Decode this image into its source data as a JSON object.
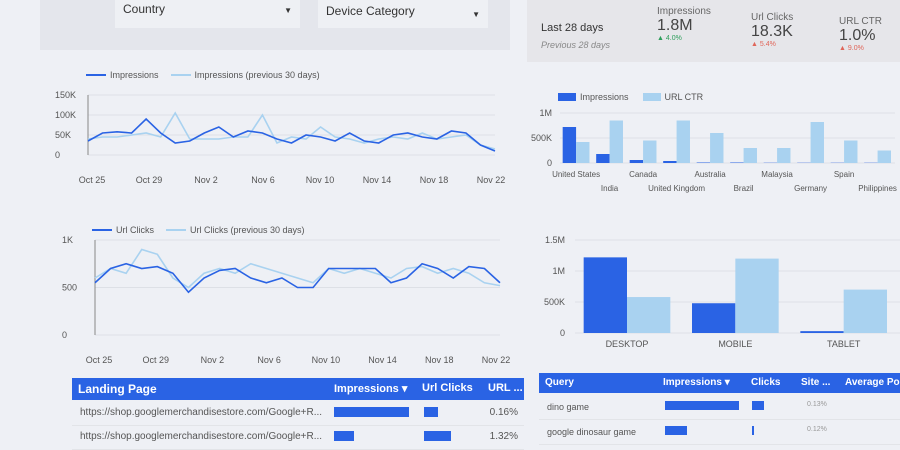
{
  "filters": {
    "country": "Country",
    "device": "Device Category"
  },
  "scorecard": {
    "period": "Last 28 days",
    "previous": "Previous 28 days",
    "metrics": [
      {
        "label": "Impressions",
        "value": "1.8M",
        "delta": "▲ 4.0%",
        "color": "#2e9e5b"
      },
      {
        "label": "Url Clicks",
        "value": "18.3K",
        "delta": "▲ 5.4%",
        "color": "#e0665a"
      },
      {
        "label": "URL CTR",
        "value": "1.0%",
        "delta": "▲ 9.0%",
        "color": "#e0665a"
      }
    ]
  },
  "colors": {
    "primary": "#2a63e4",
    "secondary": "#a9d2f0"
  },
  "chart_data": [
    {
      "type": "line",
      "legend": [
        "Impressions",
        "Impressions (previous 30 days)"
      ],
      "yticks": [
        "150K",
        "100K",
        "50K",
        "0"
      ],
      "ylim": [
        0,
        150000
      ],
      "xticks": [
        "Oct 25",
        "Oct 29",
        "Nov 2",
        "Nov 6",
        "Nov 10",
        "Nov 14",
        "Nov 18",
        "Nov 22"
      ],
      "series": [
        {
          "name": "Impressions",
          "values": [
            35000,
            55000,
            58000,
            55000,
            90000,
            55000,
            30000,
            35000,
            55000,
            70000,
            45000,
            60000,
            55000,
            40000,
            30000,
            50000,
            45000,
            35000,
            55000,
            35000,
            30000,
            50000,
            55000,
            45000,
            40000,
            60000,
            55000,
            25000,
            10000
          ]
        },
        {
          "name": "Impressions (previous 30 days)",
          "values": [
            40000,
            45000,
            45000,
            50000,
            55000,
            45000,
            105000,
            40000,
            40000,
            40000,
            45000,
            45000,
            100000,
            30000,
            45000,
            40000,
            70000,
            45000,
            40000,
            30000,
            40000,
            45000,
            40000,
            55000,
            40000,
            45000,
            50000,
            25000,
            15000
          ]
        }
      ]
    },
    {
      "type": "line",
      "legend": [
        "Url Clicks",
        "Url Clicks (previous 30 days)"
      ],
      "yticks": [
        "1K",
        "500",
        "0"
      ],
      "ylim": [
        0,
        1000
      ],
      "xticks": [
        "Oct 25",
        "Oct 29",
        "Nov 2",
        "Nov 6",
        "Nov 10",
        "Nov 14",
        "Nov 18",
        "Nov 22"
      ],
      "series": [
        {
          "name": "Url Clicks",
          "values": [
            550,
            700,
            750,
            700,
            720,
            650,
            450,
            600,
            680,
            700,
            600,
            550,
            600,
            500,
            500,
            700,
            700,
            700,
            700,
            550,
            600,
            750,
            700,
            600,
            720,
            700,
            550
          ]
        },
        {
          "name": "Url Clicks (previous 30 days)",
          "values": [
            600,
            700,
            650,
            900,
            850,
            600,
            500,
            650,
            700,
            650,
            750,
            700,
            650,
            600,
            550,
            700,
            650,
            700,
            650,
            600,
            700,
            720,
            650,
            700,
            650,
            550,
            520
          ]
        }
      ]
    },
    {
      "type": "bar",
      "legend": [
        "Impressions",
        "URL CTR"
      ],
      "yticks": [
        "1M",
        "500K",
        "0"
      ],
      "ylim": [
        0,
        1000000
      ],
      "categories": [
        "United States",
        "India",
        "Canada",
        "United Kingdom",
        "Australia",
        "Brazil",
        "Malaysia",
        "Germany",
        "Spain",
        "Philippines"
      ],
      "series": [
        {
          "name": "Impressions",
          "values": [
            720000,
            180000,
            60000,
            40000,
            10000,
            10000,
            5000,
            5000,
            5000,
            5000
          ]
        },
        {
          "name": "URL CTR",
          "values": [
            0.42,
            0.85,
            0.45,
            0.85,
            0.6,
            0.3,
            0.3,
            0.82,
            0.45,
            0.25
          ]
        }
      ]
    },
    {
      "type": "bar",
      "yticks": [
        "1.5M",
        "1M",
        "500K",
        "0"
      ],
      "ylim": [
        0,
        1500000
      ],
      "categories": [
        "DESKTOP",
        "MOBILE",
        "TABLET"
      ],
      "series": [
        {
          "values": [
            1220000,
            480000,
            30000
          ]
        },
        {
          "values": [
            580000,
            1200000,
            700000
          ]
        }
      ]
    }
  ],
  "landing_table": {
    "headers": [
      "Landing Page",
      "Impressions ▾",
      "Url Clicks",
      "URL ..."
    ],
    "rows": [
      {
        "page": "https://shop.googlemerchandisestore.com/Google+R...",
        "impr": 0.75,
        "clicks": 0.3,
        "ctr": "0.16%"
      },
      {
        "page": "https://shop.googlemerchandisestore.com/Google+R...",
        "impr": 0.2,
        "clicks": 0.6,
        "ctr": "1.32%"
      }
    ]
  },
  "query_table": {
    "headers": [
      "Query",
      "Impressions ▾",
      "Clicks",
      "Site ...",
      "Average Positi..."
    ],
    "rows": [
      {
        "query": "dino game",
        "impr": 1.0,
        "clicks": 0.8,
        "site": "0.13%"
      },
      {
        "query": "google dinosaur game",
        "impr": 0.3,
        "clicks": 0.15,
        "site": "0.12%"
      }
    ]
  }
}
